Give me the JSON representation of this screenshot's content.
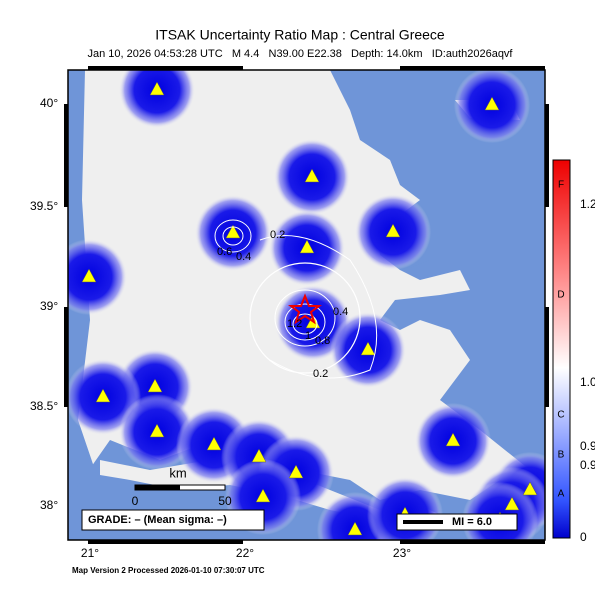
{
  "header": {
    "title": "ITSAK Uncertainty Ratio Map : Central Greece",
    "subtitle": "Jan 10, 2026 04:53:28 UTC   M 4.4   N39.00 E22.38   Depth: 14.0km   ID:auth2026aqvf"
  },
  "map": {
    "lat_labels": [
      "40°",
      "39.5°",
      "39°",
      "38.5°",
      "38°"
    ],
    "lon_labels": [
      "21°",
      "22°",
      "23°"
    ],
    "contour_labels": [
      "0.2",
      "0.6",
      "0.4",
      "0.2",
      "0.4",
      "1.2",
      "1",
      "0.8",
      "0.2"
    ],
    "scale": {
      "unit": "km",
      "start": "0",
      "end": "50"
    },
    "grade": "GRADE: – (Mean sigma: –)",
    "mi": "MI = 6.0"
  },
  "colorbar": {
    "grades": [
      "F",
      "D",
      "C",
      "B",
      "A"
    ],
    "ticks": [
      "1.2",
      "1.0",
      "0.9",
      "0.9",
      "0"
    ]
  },
  "footer": "Map Version 2 Processed 2026-01-10 07:30:07 UTC"
}
